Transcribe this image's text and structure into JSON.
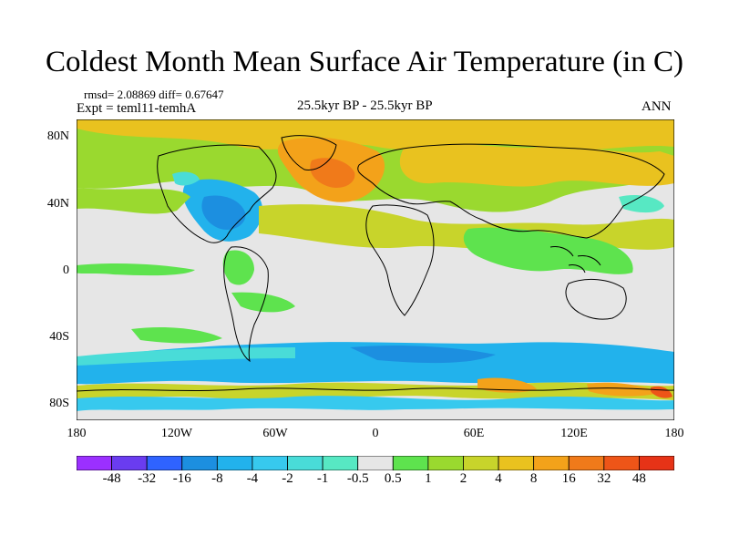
{
  "title": "Coldest Month Mean Surface Air Temperature (in C)",
  "stats": "rmsd= 2.08869 diff= 0.67647",
  "expt": "Expt = teml11-temhA",
  "period": "25.5kyr BP - 25.5kyr BP",
  "season": "ANN",
  "lat_labels": [
    "80N",
    "40N",
    "0",
    "40S",
    "80S"
  ],
  "lon_labels": [
    "180",
    "120W",
    "60W",
    "0",
    "60E",
    "120E",
    "180"
  ],
  "colorbar": {
    "labels": [
      "-48",
      "-32",
      "-16",
      "-8",
      "-4",
      "-2",
      "-1",
      "-0.5",
      "0.5",
      "1",
      "2",
      "4",
      "8",
      "16",
      "32",
      "48"
    ],
    "colors": [
      "#9b30ff",
      "#6a3cf0",
      "#2f63ff",
      "#1c8fe0",
      "#22b2ec",
      "#37c9ee",
      "#49dcd8",
      "#57e8c3",
      "#e6e6e6",
      "#5ee34e",
      "#9ad92f",
      "#c8d42b",
      "#e9c21f",
      "#f3a21a",
      "#f07a1a",
      "#ee5518",
      "#e63317"
    ]
  }
}
